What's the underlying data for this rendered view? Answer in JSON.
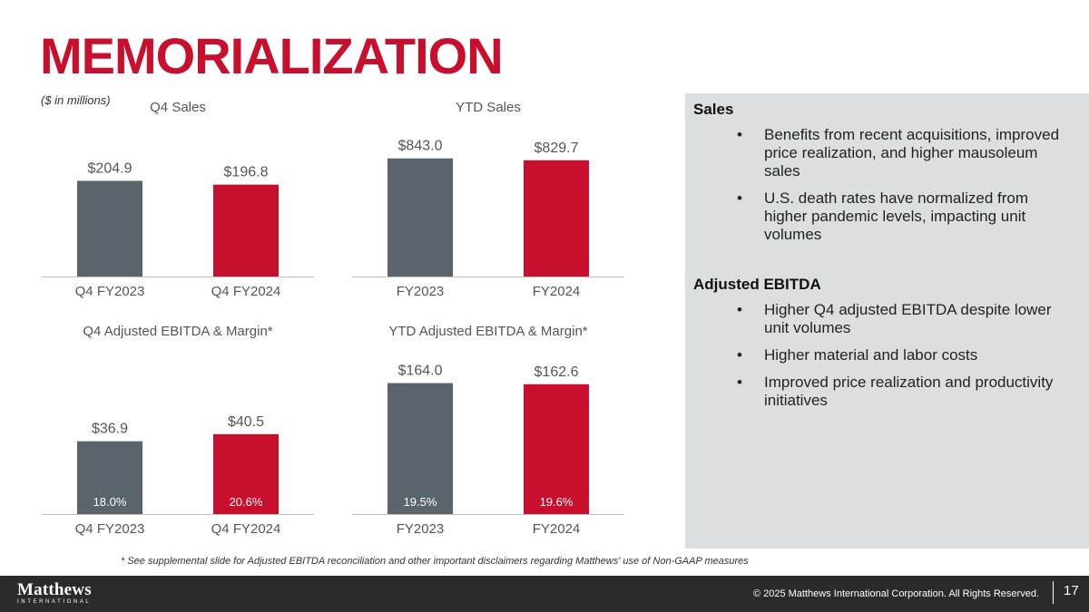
{
  "slide": {
    "title": "MEMORIALIZATION",
    "units_note": "($ in millions)",
    "footnote": "* See supplemental slide for Adjusted EBITDA reconciliation and other important disclaimers regarding Matthews' use of Non-GAAP measures"
  },
  "colors": {
    "accent": "#c8102e",
    "gray_bar": "#5a646b",
    "panel_bg": "#dcdfe0",
    "footer_bg": "#2b2b2b"
  },
  "chart_data": [
    {
      "type": "bar",
      "title": "Q4 Sales",
      "categories": [
        "Q4 FY2023",
        "Q4 FY2024"
      ],
      "values": [
        204.9,
        196.8
      ],
      "value_labels": [
        "$204.9",
        "$196.8"
      ],
      "ylim": [
        0,
        330
      ]
    },
    {
      "type": "bar",
      "title": "YTD Sales",
      "categories": [
        "FY2023",
        "FY2024"
      ],
      "values": [
        843.0,
        829.7
      ],
      "value_labels": [
        "$843.0",
        "$829.7"
      ],
      "ylim": [
        0,
        1100
      ]
    },
    {
      "type": "bar",
      "title": "Q4 Adjusted EBITDA & Margin*",
      "categories": [
        "Q4 FY2023",
        "Q4 FY2024"
      ],
      "values": [
        36.9,
        40.5
      ],
      "value_labels": [
        "$36.9",
        "$40.5"
      ],
      "margins": [
        "18.0%",
        "20.6%"
      ],
      "ylim": [
        0,
        85
      ]
    },
    {
      "type": "bar",
      "title": "YTD Adjusted EBITDA & Margin*",
      "categories": [
        "FY2023",
        "FY2024"
      ],
      "values": [
        164.0,
        162.6
      ],
      "value_labels": [
        "$164.0",
        "$162.6"
      ],
      "margins": [
        "19.5%",
        "19.6%"
      ],
      "ylim": [
        0,
        210
      ]
    }
  ],
  "panel": {
    "sales": {
      "heading": "Sales",
      "bullets": [
        "Benefits from recent acquisitions, improved price realization, and higher mausoleum sales",
        "U.S. death rates have normalized from higher pandemic levels, impacting unit volumes"
      ]
    },
    "ebitda": {
      "heading": "Adjusted EBITDA",
      "bullets": [
        "Higher Q4 adjusted EBITDA despite lower unit volumes",
        "Higher material and labor costs",
        "Improved price realization and productivity initiatives"
      ]
    },
    "bullet_char": "•"
  },
  "footer": {
    "logo_main": "Matthews",
    "logo_sub": "INTERNATIONAL",
    "copyright": "© 2025 Matthews International Corporation. All Rights Reserved.",
    "page_number": "17"
  }
}
